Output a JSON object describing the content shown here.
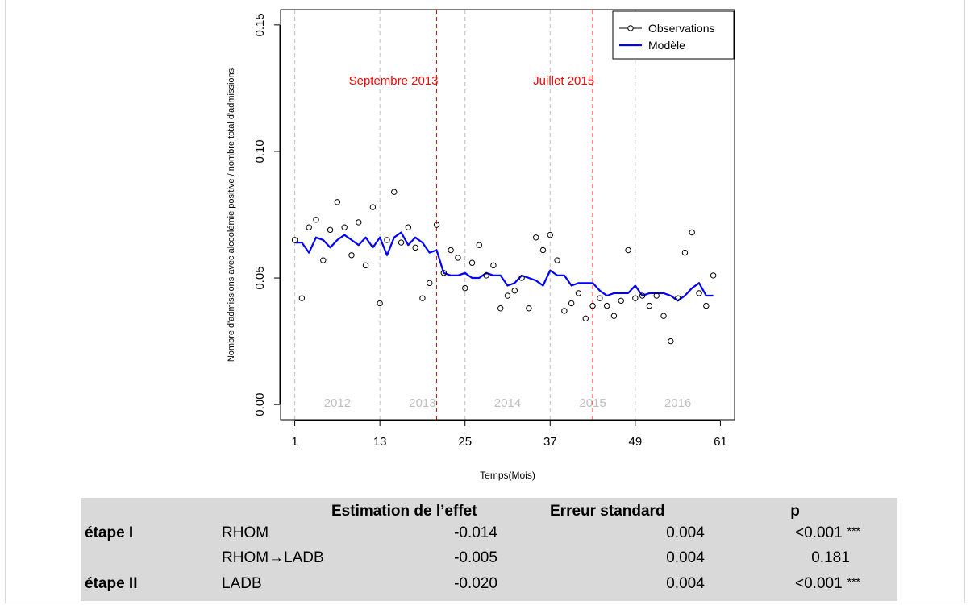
{
  "chart_data": {
    "type": "line",
    "xlabel": "Temps(Mois)",
    "ylabel": "Nombre d'admissions avec alcoolémie positive / nombre total d'admissions",
    "xlim": [
      -1,
      63
    ],
    "ylim": [
      -0.006,
      0.156
    ],
    "x_ticks": [
      1,
      13,
      25,
      37,
      49,
      61
    ],
    "y_ticks": [
      0.0,
      0.05,
      0.1,
      0.15
    ],
    "y_tick_labels": [
      "0.00",
      "0.05",
      "0.10",
      "0.15"
    ],
    "year_lines": [
      1,
      13,
      25,
      37,
      49
    ],
    "year_labels": [
      {
        "x": 7,
        "label": "2012"
      },
      {
        "x": 19,
        "label": "2013"
      },
      {
        "x": 31,
        "label": "2014"
      },
      {
        "x": 43,
        "label": "2015"
      },
      {
        "x": 55,
        "label": "2016"
      }
    ],
    "events": [
      {
        "x": 21,
        "label": "Septembre 2013",
        "color": "#ff0000"
      },
      {
        "x": 43,
        "label": "Juillet 2015",
        "color": "#ff0000"
      }
    ],
    "legend_position": "top-right",
    "series": [
      {
        "name": "Observations",
        "style": "points",
        "color": "#000000",
        "x": [
          1,
          2,
          3,
          4,
          5,
          6,
          7,
          8,
          9,
          10,
          11,
          12,
          13,
          14,
          15,
          16,
          17,
          18,
          19,
          20,
          21,
          22,
          23,
          24,
          25,
          26,
          27,
          28,
          29,
          30,
          31,
          32,
          33,
          34,
          35,
          36,
          37,
          38,
          39,
          40,
          41,
          42,
          43,
          44,
          45,
          46,
          47,
          48,
          49,
          50,
          51,
          52,
          53,
          54,
          55,
          56,
          57,
          58,
          59,
          60
        ],
        "y": [
          0.065,
          0.042,
          0.07,
          0.073,
          0.057,
          0.069,
          0.08,
          0.07,
          0.059,
          0.072,
          0.055,
          0.078,
          0.04,
          0.065,
          0.084,
          0.064,
          0.07,
          0.062,
          0.042,
          0.048,
          0.071,
          0.052,
          0.061,
          0.058,
          0.046,
          0.056,
          0.063,
          0.051,
          0.055,
          0.038,
          0.043,
          0.045,
          0.05,
          0.038,
          0.066,
          0.061,
          0.067,
          0.057,
          0.037,
          0.04,
          0.044,
          0.034,
          0.039,
          0.042,
          0.039,
          0.035,
          0.041,
          0.061,
          0.042,
          0.043,
          0.039,
          0.043,
          0.035,
          0.025,
          0.042,
          0.06,
          0.068,
          0.044,
          0.039,
          0.051
        ]
      },
      {
        "name": "Modèle",
        "style": "line",
        "color": "#0000ff",
        "x": [
          1,
          2,
          3,
          4,
          5,
          6,
          7,
          8,
          9,
          10,
          11,
          12,
          13,
          14,
          15,
          16,
          17,
          18,
          19,
          20,
          21,
          22,
          23,
          24,
          25,
          26,
          27,
          28,
          29,
          30,
          31,
          32,
          33,
          34,
          35,
          36,
          37,
          38,
          39,
          40,
          41,
          42,
          43,
          44,
          45,
          46,
          47,
          48,
          49,
          50,
          51,
          52,
          53,
          54,
          55,
          56,
          57,
          58,
          59,
          60
        ],
        "y": [
          0.064,
          0.064,
          0.06,
          0.066,
          0.065,
          0.062,
          0.065,
          0.067,
          0.065,
          0.063,
          0.066,
          0.062,
          0.066,
          0.059,
          0.066,
          0.068,
          0.063,
          0.066,
          0.064,
          0.06,
          0.061,
          0.052,
          0.051,
          0.051,
          0.052,
          0.05,
          0.05,
          0.052,
          0.051,
          0.051,
          0.047,
          0.048,
          0.051,
          0.05,
          0.049,
          0.047,
          0.053,
          0.051,
          0.051,
          0.047,
          0.048,
          0.048,
          0.048,
          0.045,
          0.043,
          0.044,
          0.044,
          0.044,
          0.047,
          0.043,
          0.044,
          0.044,
          0.044,
          0.043,
          0.041,
          0.043,
          0.046,
          0.048,
          0.043,
          0.043
        ]
      }
    ]
  },
  "table": {
    "headers": [
      "Estimation de l’effet",
      "Erreur standard",
      "p"
    ],
    "rows": [
      {
        "stage": "étape I",
        "term": "RHOM",
        "estimate": "-0.014",
        "se": "0.004",
        "p": "<0.001",
        "stars": "***"
      },
      {
        "stage": "",
        "term": "RHOM→LADB",
        "estimate": "-0.005",
        "se": "0.004",
        "p": "0.181",
        "stars": ""
      },
      {
        "stage": "étape II",
        "term": "LADB",
        "estimate": "-0.020",
        "se": "0.004",
        "p": "<0.001",
        "stars": "***"
      }
    ]
  }
}
